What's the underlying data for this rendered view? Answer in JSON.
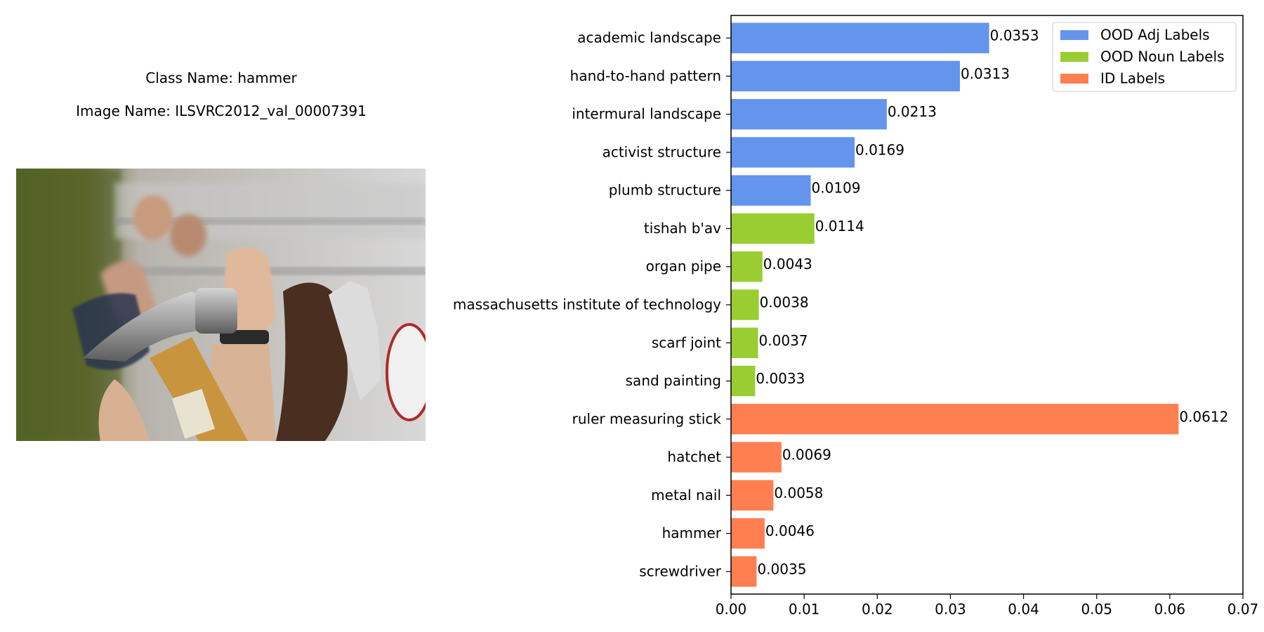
{
  "left_panel": {
    "class_name": "Class Name: hammer",
    "image_name": "Image Name: ILSVRC2012_val_00007391"
  },
  "colors": {
    "ood_adj": "#6495ED",
    "ood_noun": "#9ACD32",
    "id": "#FF7F50"
  },
  "chart_data": {
    "type": "bar",
    "orientation": "horizontal",
    "xlim": [
      0,
      0.07
    ],
    "x_ticks": [
      0.0,
      0.01,
      0.02,
      0.03,
      0.04,
      0.05,
      0.06,
      0.07
    ],
    "x_tick_labels": [
      "0.00",
      "0.01",
      "0.02",
      "0.03",
      "0.04",
      "0.05",
      "0.06",
      "0.07"
    ],
    "grid": false,
    "legend_position": "top-right",
    "legend": [
      {
        "label": "OOD Adj Labels",
        "group": "ood_adj"
      },
      {
        "label": "OOD Noun Labels",
        "group": "ood_noun"
      },
      {
        "label": "ID Labels",
        "group": "id"
      }
    ],
    "bars": [
      {
        "category": "screwdriver",
        "value": 0.0035,
        "label": "0.0035",
        "group": "id"
      },
      {
        "category": "hammer",
        "value": 0.0046,
        "label": "0.0046",
        "group": "id"
      },
      {
        "category": "metal nail",
        "value": 0.0058,
        "label": "0.0058",
        "group": "id"
      },
      {
        "category": "hatchet",
        "value": 0.0069,
        "label": "0.0069",
        "group": "id"
      },
      {
        "category": "ruler measuring stick",
        "value": 0.0612,
        "label": "0.0612",
        "group": "id"
      },
      {
        "category": "sand painting",
        "value": 0.0033,
        "label": "0.0033",
        "group": "ood_noun"
      },
      {
        "category": "scarf joint",
        "value": 0.0037,
        "label": "0.0037",
        "group": "ood_noun"
      },
      {
        "category": "massachusetts institute of technology",
        "value": 0.0038,
        "label": "0.0038",
        "group": "ood_noun"
      },
      {
        "category": "organ pipe",
        "value": 0.0043,
        "label": "0.0043",
        "group": "ood_noun"
      },
      {
        "category": "tishah b'av",
        "value": 0.0114,
        "label": "0.0114",
        "group": "ood_noun"
      },
      {
        "category": "plumb structure",
        "value": 0.0109,
        "label": "0.0109",
        "group": "ood_adj"
      },
      {
        "category": "activist structure",
        "value": 0.0169,
        "label": "0.0169",
        "group": "ood_adj"
      },
      {
        "category": "intermural landscape",
        "value": 0.0213,
        "label": "0.0213",
        "group": "ood_adj"
      },
      {
        "category": "hand-to-hand pattern",
        "value": 0.0313,
        "label": "0.0313",
        "group": "ood_adj"
      },
      {
        "category": "academic landscape",
        "value": 0.0353,
        "label": "0.0353",
        "group": "ood_adj"
      }
    ]
  }
}
